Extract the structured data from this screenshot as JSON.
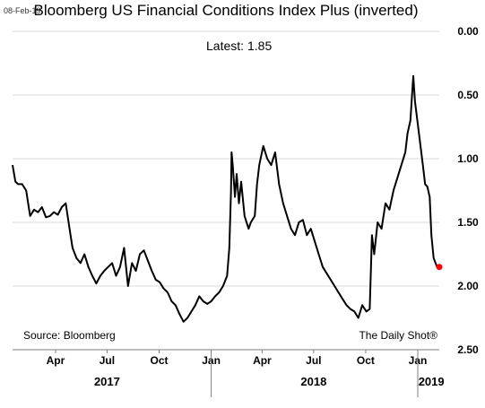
{
  "chart_data": {
    "type": "line",
    "date_stamp": "08-Feb-19",
    "title": "Bloomberg US Financial Conditions Index Plus (inverted)",
    "latest_label": "Latest:",
    "latest_value": "1.85",
    "source": "Source: Bloomberg",
    "credit": "The Daily Shot®",
    "y_axis": {
      "inverted": true,
      "ylim": [
        0,
        2.5
      ],
      "ticks": [
        "0.00",
        "0.50",
        "1.00",
        "1.50",
        "2.00",
        "2.50"
      ]
    },
    "x_axis": {
      "xlim": [
        "2017-01-15",
        "2019-02-08"
      ],
      "month_ticks": [
        {
          "label": "Apr",
          "date": "2017-04-01"
        },
        {
          "label": "Jul",
          "date": "2017-07-01"
        },
        {
          "label": "Oct",
          "date": "2017-10-01"
        },
        {
          "label": "Jan",
          "date": "2018-01-01"
        },
        {
          "label": "Apr",
          "date": "2018-04-01"
        },
        {
          "label": "Jul",
          "date": "2018-07-01"
        },
        {
          "label": "Oct",
          "date": "2018-10-01"
        },
        {
          "label": "Jan",
          "date": "2019-01-01"
        }
      ],
      "year_labels": [
        {
          "label": "2017",
          "date": "2017-07-01"
        },
        {
          "label": "2018",
          "date": "2018-07-01"
        },
        {
          "label": "2019",
          "date": "2019-01-25"
        }
      ],
      "year_dividers": [
        "2018-01-01",
        "2019-01-01"
      ]
    },
    "series": [
      {
        "color": "#000000",
        "points": [
          [
            "2017-01-15",
            1.05
          ],
          [
            "2017-01-20",
            1.18
          ],
          [
            "2017-01-25",
            1.2
          ],
          [
            "2017-02-01",
            1.2
          ],
          [
            "2017-02-08",
            1.25
          ],
          [
            "2017-02-15",
            1.45
          ],
          [
            "2017-02-22",
            1.4
          ],
          [
            "2017-03-01",
            1.42
          ],
          [
            "2017-03-08",
            1.38
          ],
          [
            "2017-03-15",
            1.46
          ],
          [
            "2017-03-22",
            1.45
          ],
          [
            "2017-03-29",
            1.42
          ],
          [
            "2017-04-05",
            1.44
          ],
          [
            "2017-04-12",
            1.38
          ],
          [
            "2017-04-19",
            1.35
          ],
          [
            "2017-04-26",
            1.56
          ],
          [
            "2017-05-01",
            1.7
          ],
          [
            "2017-05-08",
            1.78
          ],
          [
            "2017-05-15",
            1.82
          ],
          [
            "2017-05-22",
            1.75
          ],
          [
            "2017-05-29",
            1.85
          ],
          [
            "2017-06-05",
            1.92
          ],
          [
            "2017-06-12",
            1.98
          ],
          [
            "2017-06-19",
            1.92
          ],
          [
            "2017-06-26",
            1.88
          ],
          [
            "2017-07-03",
            1.85
          ],
          [
            "2017-07-10",
            1.82
          ],
          [
            "2017-07-17",
            1.92
          ],
          [
            "2017-07-24",
            1.85
          ],
          [
            "2017-07-31",
            1.7
          ],
          [
            "2017-08-07",
            2.0
          ],
          [
            "2017-08-14",
            1.82
          ],
          [
            "2017-08-21",
            1.88
          ],
          [
            "2017-08-28",
            1.75
          ],
          [
            "2017-09-04",
            1.72
          ],
          [
            "2017-09-11",
            1.8
          ],
          [
            "2017-09-18",
            1.88
          ],
          [
            "2017-09-25",
            1.95
          ],
          [
            "2017-10-02",
            1.97
          ],
          [
            "2017-10-09",
            2.02
          ],
          [
            "2017-10-16",
            2.05
          ],
          [
            "2017-10-23",
            2.12
          ],
          [
            "2017-10-30",
            2.15
          ],
          [
            "2017-11-06",
            2.22
          ],
          [
            "2017-11-13",
            2.28
          ],
          [
            "2017-11-20",
            2.25
          ],
          [
            "2017-11-27",
            2.2
          ],
          [
            "2017-12-04",
            2.15
          ],
          [
            "2017-12-11",
            2.08
          ],
          [
            "2017-12-18",
            2.12
          ],
          [
            "2017-12-25",
            2.14
          ],
          [
            "2018-01-01",
            2.12
          ],
          [
            "2018-01-08",
            2.08
          ],
          [
            "2018-01-15",
            2.05
          ],
          [
            "2018-01-22",
            2.0
          ],
          [
            "2018-01-29",
            1.92
          ],
          [
            "2018-02-02",
            1.7
          ],
          [
            "2018-02-05",
            1.25
          ],
          [
            "2018-02-06",
            0.95
          ],
          [
            "2018-02-08",
            1.05
          ],
          [
            "2018-02-12",
            1.3
          ],
          [
            "2018-02-15",
            1.12
          ],
          [
            "2018-02-19",
            1.35
          ],
          [
            "2018-02-23",
            1.18
          ],
          [
            "2018-03-01",
            1.45
          ],
          [
            "2018-03-08",
            1.55
          ],
          [
            "2018-03-12",
            1.5
          ],
          [
            "2018-03-19",
            1.45
          ],
          [
            "2018-03-23",
            1.2
          ],
          [
            "2018-03-27",
            1.05
          ],
          [
            "2018-04-03",
            0.9
          ],
          [
            "2018-04-10",
            1.0
          ],
          [
            "2018-04-17",
            1.05
          ],
          [
            "2018-04-24",
            0.95
          ],
          [
            "2018-05-01",
            1.2
          ],
          [
            "2018-05-08",
            1.35
          ],
          [
            "2018-05-15",
            1.45
          ],
          [
            "2018-05-22",
            1.55
          ],
          [
            "2018-05-29",
            1.6
          ],
          [
            "2018-06-05",
            1.5
          ],
          [
            "2018-06-12",
            1.48
          ],
          [
            "2018-06-19",
            1.6
          ],
          [
            "2018-06-26",
            1.55
          ],
          [
            "2018-07-03",
            1.65
          ],
          [
            "2018-07-10",
            1.75
          ],
          [
            "2018-07-17",
            1.85
          ],
          [
            "2018-07-24",
            1.9
          ],
          [
            "2018-07-31",
            1.95
          ],
          [
            "2018-08-07",
            2.0
          ],
          [
            "2018-08-14",
            2.05
          ],
          [
            "2018-08-21",
            2.1
          ],
          [
            "2018-08-28",
            2.15
          ],
          [
            "2018-09-04",
            2.18
          ],
          [
            "2018-09-11",
            2.2
          ],
          [
            "2018-09-18",
            2.25
          ],
          [
            "2018-09-25",
            2.15
          ],
          [
            "2018-10-02",
            2.2
          ],
          [
            "2018-10-08",
            2.18
          ],
          [
            "2018-10-12",
            1.6
          ],
          [
            "2018-10-16",
            1.75
          ],
          [
            "2018-10-22",
            1.5
          ],
          [
            "2018-10-29",
            1.55
          ],
          [
            "2018-11-05",
            1.35
          ],
          [
            "2018-11-12",
            1.4
          ],
          [
            "2018-11-19",
            1.25
          ],
          [
            "2018-11-26",
            1.15
          ],
          [
            "2018-12-03",
            1.05
          ],
          [
            "2018-12-10",
            0.95
          ],
          [
            "2018-12-14",
            0.8
          ],
          [
            "2018-12-19",
            0.7
          ],
          [
            "2018-12-24",
            0.35
          ],
          [
            "2018-12-27",
            0.55
          ],
          [
            "2019-01-03",
            0.8
          ],
          [
            "2019-01-10",
            1.05
          ],
          [
            "2019-01-14",
            1.2
          ],
          [
            "2019-01-18",
            1.22
          ],
          [
            "2019-01-22",
            1.3
          ],
          [
            "2019-01-25",
            1.6
          ],
          [
            "2019-01-29",
            1.78
          ],
          [
            "2019-02-04",
            1.85
          ],
          [
            "2019-02-08",
            1.85
          ]
        ]
      }
    ],
    "latest_marker": {
      "date": "2019-02-08",
      "value": 1.85,
      "color": "#ff0000"
    },
    "grid": true
  }
}
